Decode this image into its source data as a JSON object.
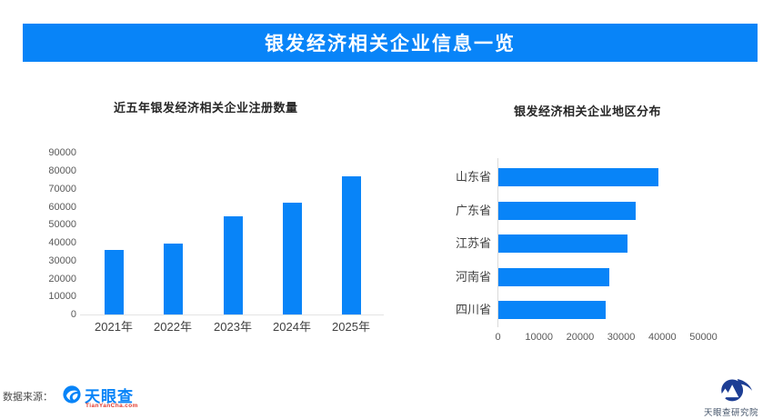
{
  "banner": {
    "title": "银发经济相关企业信息一览",
    "bg_color": "#0884F8",
    "text_color": "#FFFFFF"
  },
  "chart_data": [
    {
      "type": "bar",
      "title": "近五年银发经济相关企业注册数量",
      "categories": [
        "2021年",
        "2022年",
        "2023年",
        "2024年",
        "2025年"
      ],
      "values": [
        36000,
        39500,
        54500,
        62500,
        77000
      ],
      "xlabel": "",
      "ylabel": "",
      "ylim": [
        0,
        90000
      ],
      "ytick_step": 10000,
      "ytick_labels": [
        "0",
        "10000",
        "20000",
        "30000",
        "40000",
        "50000",
        "60000",
        "70000",
        "80000",
        "90000"
      ],
      "bar_color": "#0884F8",
      "grid": false,
      "legend": false
    },
    {
      "type": "bar-horizontal",
      "title": "银发经济相关企业地区分布",
      "categories": [
        "山东省",
        "广东省",
        "江苏省",
        "河南省",
        "四川省"
      ],
      "values": [
        39000,
        33500,
        31500,
        27000,
        26000
      ],
      "xlabel": "",
      "ylabel": "",
      "xlim": [
        0,
        50000
      ],
      "xtick_step": 10000,
      "xtick_labels": [
        "0",
        "10000",
        "20000",
        "30000",
        "40000",
        "50000"
      ],
      "bar_color": "#0884F8",
      "grid": false,
      "legend": false
    }
  ],
  "footer": {
    "source_label": "数据来源：",
    "tianyancha_logo": {
      "wordmark": "天眼查",
      "domain": "TianYanCha.com",
      "blue": "#0884F8",
      "red": "#E23B2E"
    },
    "institute_logo": {
      "wordmark": "天眼查研究院",
      "text_color": "#44546A",
      "icon_color": "#1D3E94"
    }
  }
}
